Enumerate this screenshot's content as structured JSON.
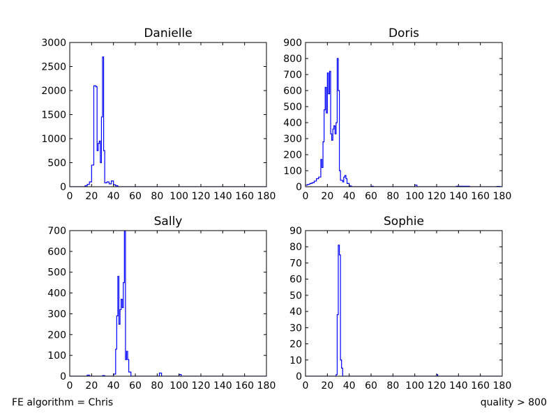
{
  "footer": {
    "left_text": "FE algorithm = Chris",
    "right_text": "quality > 800"
  },
  "line_color": "#0000ff",
  "chart_data": [
    {
      "type": "histogram",
      "title": "Danielle",
      "xlim": [
        0,
        180
      ],
      "ylim": [
        0,
        3000
      ],
      "xticks": [
        0,
        20,
        40,
        60,
        80,
        100,
        120,
        140,
        160,
        180
      ],
      "yticks": [
        0,
        500,
        1000,
        1500,
        2000,
        2500,
        3000
      ],
      "bin_width": 2,
      "bins": [
        [
          0,
          0
        ],
        [
          12,
          0
        ],
        [
          14,
          20
        ],
        [
          16,
          50
        ],
        [
          18,
          100
        ],
        [
          20,
          450
        ],
        [
          22,
          2100
        ],
        [
          24,
          2080
        ],
        [
          25,
          750
        ],
        [
          26,
          900
        ],
        [
          27,
          950
        ],
        [
          28,
          500
        ],
        [
          29,
          1450
        ],
        [
          30,
          2700
        ],
        [
          31,
          750
        ],
        [
          32,
          80
        ],
        [
          34,
          100
        ],
        [
          36,
          60
        ],
        [
          38,
          120
        ],
        [
          40,
          40
        ],
        [
          42,
          20
        ],
        [
          44,
          0
        ],
        [
          180,
          0
        ]
      ]
    },
    {
      "type": "histogram",
      "title": "Doris",
      "xlim": [
        0,
        180
      ],
      "ylim": [
        0,
        900
      ],
      "xticks": [
        0,
        20,
        40,
        60,
        80,
        100,
        120,
        140,
        160,
        180
      ],
      "yticks": [
        0,
        100,
        200,
        300,
        400,
        500,
        600,
        700,
        800,
        900
      ],
      "bin_width": 1,
      "bins": [
        [
          0,
          10
        ],
        [
          2,
          15
        ],
        [
          4,
          20
        ],
        [
          6,
          25
        ],
        [
          8,
          35
        ],
        [
          10,
          50
        ],
        [
          12,
          60
        ],
        [
          14,
          170
        ],
        [
          15,
          120
        ],
        [
          16,
          280
        ],
        [
          17,
          480
        ],
        [
          18,
          620
        ],
        [
          19,
          460
        ],
        [
          20,
          710
        ],
        [
          21,
          580
        ],
        [
          22,
          720
        ],
        [
          23,
          330
        ],
        [
          24,
          290
        ],
        [
          25,
          360
        ],
        [
          26,
          380
        ],
        [
          27,
          330
        ],
        [
          28,
          400
        ],
        [
          29,
          800
        ],
        [
          30,
          600
        ],
        [
          31,
          100
        ],
        [
          32,
          40
        ],
        [
          34,
          30
        ],
        [
          35,
          60
        ],
        [
          36,
          70
        ],
        [
          37,
          50
        ],
        [
          38,
          20
        ],
        [
          40,
          5
        ],
        [
          42,
          0
        ],
        [
          60,
          3
        ],
        [
          62,
          0
        ],
        [
          100,
          10
        ],
        [
          102,
          0
        ],
        [
          138,
          3
        ],
        [
          150,
          0
        ],
        [
          175,
          2
        ],
        [
          178,
          0
        ],
        [
          180,
          0
        ]
      ]
    },
    {
      "type": "histogram",
      "title": "Sally",
      "xlim": [
        0,
        180
      ],
      "ylim": [
        0,
        700
      ],
      "xticks": [
        0,
        20,
        40,
        60,
        80,
        100,
        120,
        140,
        160,
        180
      ],
      "yticks": [
        0,
        100,
        200,
        300,
        400,
        500,
        600,
        700
      ],
      "bin_width": 1,
      "bins": [
        [
          0,
          0
        ],
        [
          16,
          5
        ],
        [
          18,
          0
        ],
        [
          30,
          3
        ],
        [
          32,
          0
        ],
        [
          40,
          10
        ],
        [
          42,
          130
        ],
        [
          43,
          290
        ],
        [
          44,
          480
        ],
        [
          45,
          250
        ],
        [
          46,
          320
        ],
        [
          47,
          370
        ],
        [
          48,
          330
        ],
        [
          49,
          450
        ],
        [
          50,
          700
        ],
        [
          51,
          80
        ],
        [
          52,
          120
        ],
        [
          53,
          80
        ],
        [
          54,
          20
        ],
        [
          56,
          0
        ],
        [
          82,
          15
        ],
        [
          84,
          0
        ],
        [
          100,
          8
        ],
        [
          102,
          0
        ],
        [
          180,
          0
        ]
      ]
    },
    {
      "type": "histogram",
      "title": "Sophie",
      "xlim": [
        0,
        180
      ],
      "ylim": [
        0,
        90
      ],
      "xticks": [
        0,
        20,
        40,
        60,
        80,
        100,
        120,
        140,
        160,
        180
      ],
      "yticks": [
        0,
        10,
        20,
        30,
        40,
        50,
        60,
        70,
        80,
        90
      ],
      "bin_width": 1,
      "bins": [
        [
          0,
          0
        ],
        [
          28,
          1
        ],
        [
          29,
          38
        ],
        [
          30,
          81
        ],
        [
          31,
          75
        ],
        [
          32,
          10
        ],
        [
          33,
          5
        ],
        [
          34,
          0
        ],
        [
          120,
          1
        ],
        [
          121,
          0
        ],
        [
          180,
          0
        ]
      ]
    }
  ]
}
